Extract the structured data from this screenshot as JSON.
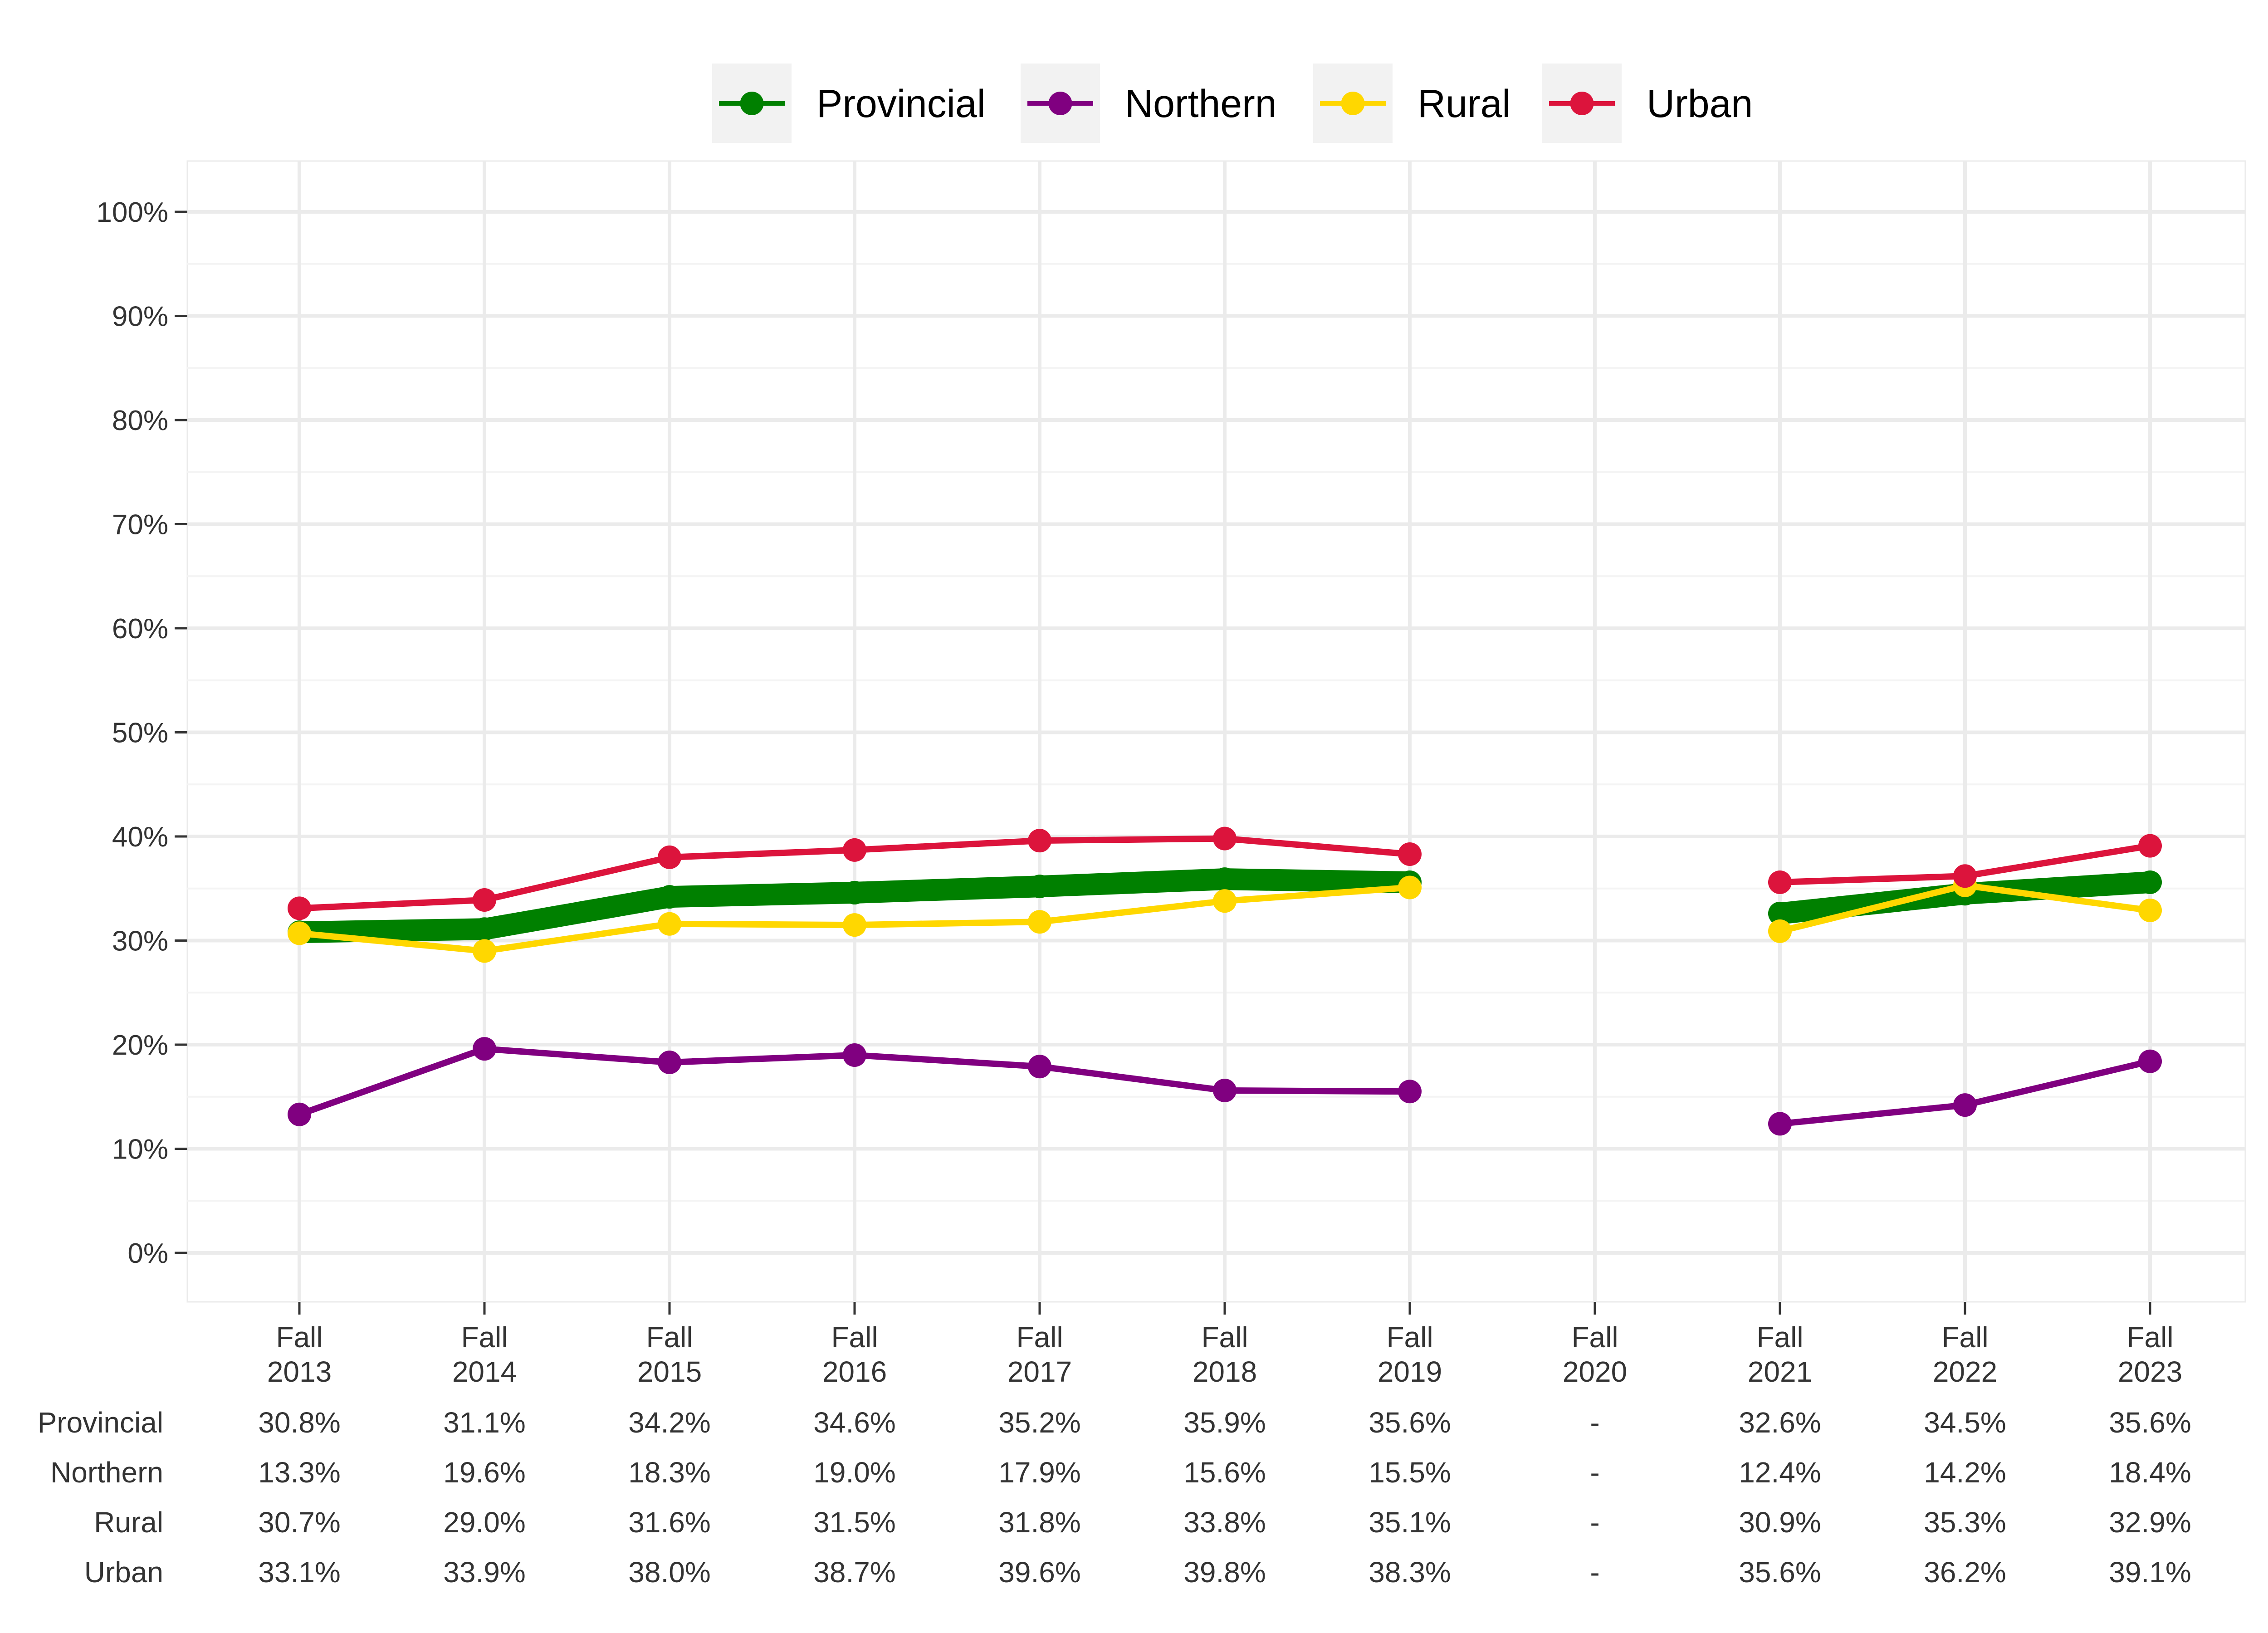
{
  "chart_data": {
    "type": "line",
    "categories": [
      [
        "Fall",
        "2013"
      ],
      [
        "Fall",
        "2014"
      ],
      [
        "Fall",
        "2015"
      ],
      [
        "Fall",
        "2016"
      ],
      [
        "Fall",
        "2017"
      ],
      [
        "Fall",
        "2018"
      ],
      [
        "Fall",
        "2019"
      ],
      [
        "Fall",
        "2020"
      ],
      [
        "Fall",
        "2021"
      ],
      [
        "Fall",
        "2022"
      ],
      [
        "Fall",
        "2023"
      ]
    ],
    "y_ticks": [
      "0%",
      "10%",
      "20%",
      "30%",
      "40%",
      "50%",
      "60%",
      "70%",
      "80%",
      "90%",
      "100%"
    ],
    "ylim": [
      0,
      100
    ],
    "grid": true,
    "legend_position": "top",
    "series": [
      {
        "name": "Provincial",
        "color": "#008000",
        "emphasis": true,
        "values": [
          30.8,
          31.1,
          34.2,
          34.6,
          35.2,
          35.9,
          35.6,
          null,
          32.6,
          34.5,
          35.6
        ],
        "labels": [
          "30.8%",
          "31.1%",
          "34.2%",
          "34.6%",
          "35.2%",
          "35.9%",
          "35.6%",
          "-",
          "32.6%",
          "34.5%",
          "35.6%"
        ]
      },
      {
        "name": "Northern",
        "color": "#800080",
        "emphasis": false,
        "values": [
          13.3,
          19.6,
          18.3,
          19.0,
          17.9,
          15.6,
          15.5,
          null,
          12.4,
          14.2,
          18.4
        ],
        "labels": [
          "13.3%",
          "19.6%",
          "18.3%",
          "19.0%",
          "17.9%",
          "15.6%",
          "15.5%",
          "-",
          "12.4%",
          "14.2%",
          "18.4%"
        ]
      },
      {
        "name": "Rural",
        "color": "#FFD700",
        "emphasis": false,
        "values": [
          30.7,
          29.0,
          31.6,
          31.5,
          31.8,
          33.8,
          35.1,
          null,
          30.9,
          35.3,
          32.9
        ],
        "labels": [
          "30.7%",
          "29.0%",
          "31.6%",
          "31.5%",
          "31.8%",
          "33.8%",
          "35.1%",
          "-",
          "30.9%",
          "35.3%",
          "32.9%"
        ]
      },
      {
        "name": "Urban",
        "color": "#DC143C",
        "emphasis": false,
        "values": [
          33.1,
          33.9,
          38.0,
          38.7,
          39.6,
          39.8,
          38.3,
          null,
          35.6,
          36.2,
          39.1
        ],
        "labels": [
          "33.1%",
          "33.9%",
          "38.0%",
          "38.7%",
          "39.6%",
          "39.8%",
          "38.3%",
          "-",
          "35.6%",
          "36.2%",
          "39.1%"
        ]
      }
    ]
  }
}
